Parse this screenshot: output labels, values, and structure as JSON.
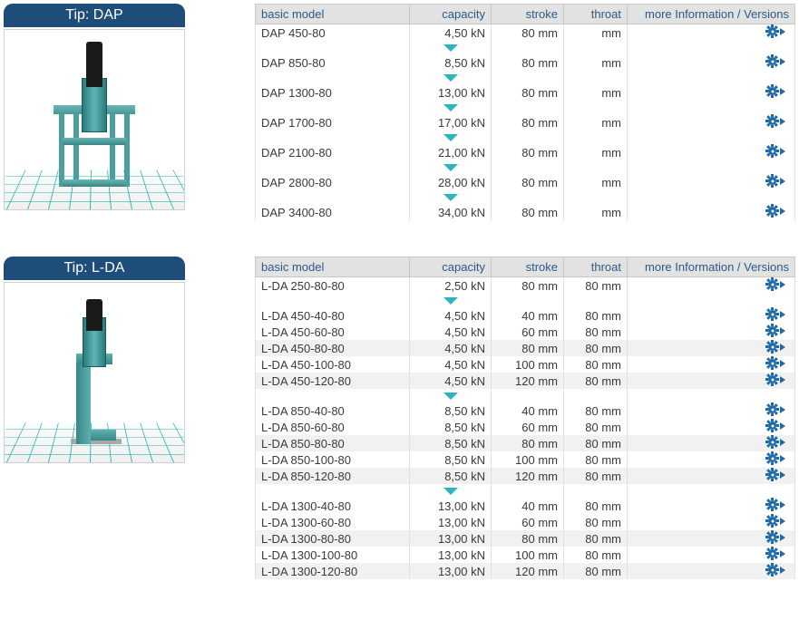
{
  "colors": {
    "header_bg": "#1e4d7a",
    "header_text": "#ffffff",
    "table_header_bg": "#e2e2e2",
    "table_header_text": "#2a5a8a",
    "zebra_bg": "#f1f1f1",
    "border": "#e0e0e0",
    "triangle": "#2bb5c0",
    "gear": "#1e6aa8",
    "grid": "#2bb5b5",
    "machine": "#5fb5b5"
  },
  "table_headers": {
    "model": "basic model",
    "capacity": "capacity",
    "stroke": "stroke",
    "throat": "throat",
    "info": "more Information / Versions"
  },
  "sections": [
    {
      "title": "Tip: DAP",
      "machine_type": "dap",
      "groups": [
        [
          {
            "model": "DAP 450-80",
            "capacity": "4,50 kN",
            "stroke": "80 mm",
            "throat": "mm",
            "zebra": false
          }
        ],
        [
          {
            "model": "DAP 850-80",
            "capacity": "8,50 kN",
            "stroke": "80 mm",
            "throat": "mm",
            "zebra": false
          }
        ],
        [
          {
            "model": "DAP 1300-80",
            "capacity": "13,00 kN",
            "stroke": "80 mm",
            "throat": "mm",
            "zebra": false
          }
        ],
        [
          {
            "model": "DAP 1700-80",
            "capacity": "17,00 kN",
            "stroke": "80 mm",
            "throat": "mm",
            "zebra": false
          }
        ],
        [
          {
            "model": "DAP 2100-80",
            "capacity": "21,00 kN",
            "stroke": "80 mm",
            "throat": "mm",
            "zebra": false
          }
        ],
        [
          {
            "model": "DAP 2800-80",
            "capacity": "28,00 kN",
            "stroke": "80 mm",
            "throat": "mm",
            "zebra": false
          }
        ],
        [
          {
            "model": "DAP 3400-80",
            "capacity": "34,00 kN",
            "stroke": "80 mm",
            "throat": "mm",
            "zebra": false
          }
        ]
      ]
    },
    {
      "title": "Tip: L-DA",
      "machine_type": "lda",
      "groups": [
        [
          {
            "model": "L-DA 250-80-80",
            "capacity": "2,50 kN",
            "stroke": "80 mm",
            "throat": "80 mm",
            "zebra": false
          }
        ],
        [
          {
            "model": "L-DA 450-40-80",
            "capacity": "4,50 kN",
            "stroke": "40 mm",
            "throat": "80 mm",
            "zebra": false
          },
          {
            "model": "L-DA 450-60-80",
            "capacity": "4,50 kN",
            "stroke": "60 mm",
            "throat": "80 mm",
            "zebra": false
          },
          {
            "model": "L-DA 450-80-80",
            "capacity": "4,50 kN",
            "stroke": "80 mm",
            "throat": "80 mm",
            "zebra": true
          },
          {
            "model": "L-DA 450-100-80",
            "capacity": "4,50 kN",
            "stroke": "100 mm",
            "throat": "80 mm",
            "zebra": false
          },
          {
            "model": "L-DA 450-120-80",
            "capacity": "4,50 kN",
            "stroke": "120 mm",
            "throat": "80 mm",
            "zebra": true
          }
        ],
        [
          {
            "model": "L-DA 850-40-80",
            "capacity": "8,50 kN",
            "stroke": "40 mm",
            "throat": "80 mm",
            "zebra": false
          },
          {
            "model": "L-DA 850-60-80",
            "capacity": "8,50 kN",
            "stroke": "60 mm",
            "throat": "80 mm",
            "zebra": false
          },
          {
            "model": "L-DA 850-80-80",
            "capacity": "8,50 kN",
            "stroke": "80 mm",
            "throat": "80 mm",
            "zebra": true
          },
          {
            "model": "L-DA 850-100-80",
            "capacity": "8,50 kN",
            "stroke": "100 mm",
            "throat": "80 mm",
            "zebra": false
          },
          {
            "model": "L-DA 850-120-80",
            "capacity": "8,50 kN",
            "stroke": "120 mm",
            "throat": "80 mm",
            "zebra": true
          }
        ],
        [
          {
            "model": "L-DA 1300-40-80",
            "capacity": "13,00 kN",
            "stroke": "40 mm",
            "throat": "80 mm",
            "zebra": false
          },
          {
            "model": "L-DA 1300-60-80",
            "capacity": "13,00 kN",
            "stroke": "60 mm",
            "throat": "80 mm",
            "zebra": false
          },
          {
            "model": "L-DA 1300-80-80",
            "capacity": "13,00 kN",
            "stroke": "80 mm",
            "throat": "80 mm",
            "zebra": true
          },
          {
            "model": "L-DA 1300-100-80",
            "capacity": "13,00 kN",
            "stroke": "100 mm",
            "throat": "80 mm",
            "zebra": false
          },
          {
            "model": "L-DA 1300-120-80",
            "capacity": "13,00 kN",
            "stroke": "120 mm",
            "throat": "80 mm",
            "zebra": true
          }
        ]
      ]
    }
  ]
}
